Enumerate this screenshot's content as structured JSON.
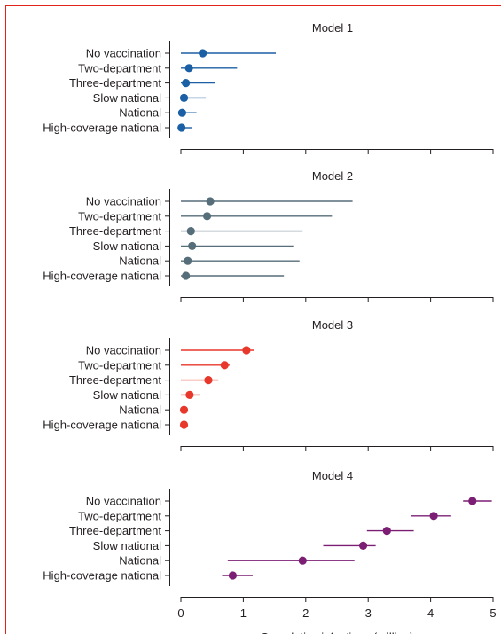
{
  "chart_data": {
    "type": "forest",
    "categories": [
      "No vaccination",
      "Two-department",
      "Three-department",
      "Slow national",
      "National",
      "High-coverage national"
    ],
    "xlabel": "Cumulative infections (million)",
    "xlim": [
      0,
      5
    ],
    "xticks": [
      "0",
      "1",
      "2",
      "3",
      "4",
      "5"
    ],
    "grid": false,
    "panels": [
      {
        "title": "Model 1",
        "color": "#1b5fa5",
        "points": [
          {
            "category": "No vaccination",
            "value": 0.35,
            "low": 0.0,
            "high": 1.52
          },
          {
            "category": "Two-department",
            "value": 0.13,
            "low": 0.0,
            "high": 0.9
          },
          {
            "category": "Three-department",
            "value": 0.08,
            "low": 0.0,
            "high": 0.55
          },
          {
            "category": "Slow national",
            "value": 0.05,
            "low": 0.0,
            "high": 0.4
          },
          {
            "category": "National",
            "value": 0.02,
            "low": 0.0,
            "high": 0.25
          },
          {
            "category": "High-coverage national",
            "value": 0.01,
            "low": 0.0,
            "high": 0.18
          }
        ]
      },
      {
        "title": "Model 2",
        "color": "#566d7a",
        "points": [
          {
            "category": "No vaccination",
            "value": 0.47,
            "low": 0.0,
            "high": 2.75
          },
          {
            "category": "Two-department",
            "value": 0.42,
            "low": 0.0,
            "high": 2.42
          },
          {
            "category": "Three-department",
            "value": 0.16,
            "low": 0.0,
            "high": 1.95
          },
          {
            "category": "Slow national",
            "value": 0.18,
            "low": 0.0,
            "high": 1.8
          },
          {
            "category": "National",
            "value": 0.11,
            "low": 0.0,
            "high": 1.9
          },
          {
            "category": "High-coverage national",
            "value": 0.08,
            "low": 0.0,
            "high": 1.65
          }
        ]
      },
      {
        "title": "Model 3",
        "color": "#e8372b",
        "points": [
          {
            "category": "No vaccination",
            "value": 1.05,
            "low": 0.0,
            "high": 1.17
          },
          {
            "category": "Two-department",
            "value": 0.7,
            "low": 0.0,
            "high": 0.78
          },
          {
            "category": "Three-department",
            "value": 0.44,
            "low": 0.0,
            "high": 0.6
          },
          {
            "category": "Slow national",
            "value": 0.14,
            "low": 0.0,
            "high": 0.3
          },
          {
            "category": "National",
            "value": 0.05,
            "low": 0.0,
            "high": 0.08
          },
          {
            "category": "High-coverage national",
            "value": 0.05,
            "low": 0.0,
            "high": 0.07
          }
        ]
      },
      {
        "title": "Model 4",
        "color": "#7c1f74",
        "points": [
          {
            "category": "No vaccination",
            "value": 4.67,
            "low": 4.52,
            "high": 4.98
          },
          {
            "category": "Two-department",
            "value": 4.05,
            "low": 3.68,
            "high": 4.33
          },
          {
            "category": "Three-department",
            "value": 3.3,
            "low": 2.98,
            "high": 3.73
          },
          {
            "category": "Slow national",
            "value": 2.92,
            "low": 2.28,
            "high": 3.12
          },
          {
            "category": "National",
            "value": 1.95,
            "low": 0.75,
            "high": 2.78
          },
          {
            "category": "High-coverage national",
            "value": 0.83,
            "low": 0.66,
            "high": 1.15
          }
        ]
      }
    ]
  }
}
